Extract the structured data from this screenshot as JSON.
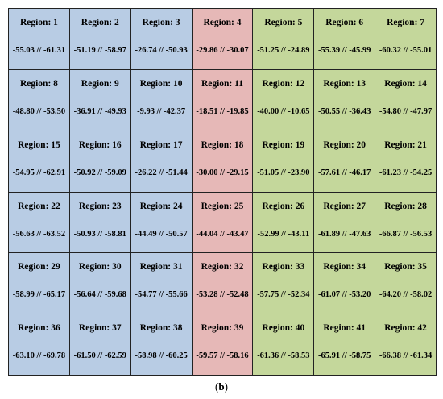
{
  "colors": {
    "blue": "#b8cce4",
    "red": "#e6b8b7",
    "green": "#c4d79b"
  },
  "regions": [
    {
      "label": "Region: 1",
      "values": "-55.03 // -61.31",
      "color": "blue"
    },
    {
      "label": "Region: 2",
      "values": "-51.19 // -58.97",
      "color": "blue"
    },
    {
      "label": "Region: 3",
      "values": "-26.74 // -50.93",
      "color": "blue"
    },
    {
      "label": "Region: 4",
      "values": "-29.86 // -30.07",
      "color": "red"
    },
    {
      "label": "Region: 5",
      "values": "-51.25 // -24.89",
      "color": "green"
    },
    {
      "label": "Region: 6",
      "values": "-55.39 // -45.99",
      "color": "green"
    },
    {
      "label": "Region: 7",
      "values": "-60.32 // -55.01",
      "color": "green"
    },
    {
      "label": "Region: 8",
      "values": "-48.80 // -53.50",
      "color": "blue"
    },
    {
      "label": "Region: 9",
      "values": "-36.91 // -49.93",
      "color": "blue"
    },
    {
      "label": "Region: 10",
      "values": "-9.93 // -42.37",
      "color": "blue"
    },
    {
      "label": "Region: 11",
      "values": "-18.51 // -19.85",
      "color": "red"
    },
    {
      "label": "Region: 12",
      "values": "-40.00 // -10.65",
      "color": "green"
    },
    {
      "label": "Region: 13",
      "values": "-50.55 // -36.43",
      "color": "green"
    },
    {
      "label": "Region: 14",
      "values": "-54.80 // -47.97",
      "color": "green"
    },
    {
      "label": "Region: 15",
      "values": "-54.95 // -62.91",
      "color": "blue"
    },
    {
      "label": "Region: 16",
      "values": "-50.92 // -59.09",
      "color": "blue"
    },
    {
      "label": "Region: 17",
      "values": "-26.22 // -51.44",
      "color": "blue"
    },
    {
      "label": "Region: 18",
      "values": "-30.00 // -29.15",
      "color": "red"
    },
    {
      "label": "Region: 19",
      "values": "-51.05 // -23.90",
      "color": "green"
    },
    {
      "label": "Region: 20",
      "values": "-57.61 // -46.17",
      "color": "green"
    },
    {
      "label": "Region: 21",
      "values": "-61.23 // -54.25",
      "color": "green"
    },
    {
      "label": "Region: 22",
      "values": "-56.63 // -63.52",
      "color": "blue"
    },
    {
      "label": "Region: 23",
      "values": "-50.93 // -58.81",
      "color": "blue"
    },
    {
      "label": "Region: 24",
      "values": "-44.49 // -50.57",
      "color": "blue"
    },
    {
      "label": "Region: 25",
      "values": "-44.04 // -43.47",
      "color": "red"
    },
    {
      "label": "Region: 26",
      "values": "-52.99 // -43.11",
      "color": "green"
    },
    {
      "label": "Region: 27",
      "values": "-61.89 // -47.63",
      "color": "green"
    },
    {
      "label": "Region: 28",
      "values": "-66.87 // -56.53",
      "color": "green"
    },
    {
      "label": "Region: 29",
      "values": "-58.99 // -65.17",
      "color": "blue"
    },
    {
      "label": "Region: 30",
      "values": "-56.64 // -59.68",
      "color": "blue"
    },
    {
      "label": "Region: 31",
      "values": "-54.77 // -55.66",
      "color": "blue"
    },
    {
      "label": "Region: 32",
      "values": "-53.28 // -52.48",
      "color": "red"
    },
    {
      "label": "Region: 33",
      "values": "-57.75 // -52.34",
      "color": "green"
    },
    {
      "label": "Region: 34",
      "values": "-61.07 // -53.20",
      "color": "green"
    },
    {
      "label": "Region: 35",
      "values": "-64.20 // -58.02",
      "color": "green"
    },
    {
      "label": "Region: 36",
      "values": "-63.10 // -69.78",
      "color": "blue"
    },
    {
      "label": "Region: 37",
      "values": "-61.50 // -62.59",
      "color": "blue"
    },
    {
      "label": "Region: 38",
      "values": "-58.98 // -60.25",
      "color": "blue"
    },
    {
      "label": "Region: 39",
      "values": "-59.57 // -58.16",
      "color": "red"
    },
    {
      "label": "Region: 40",
      "values": "-61.36 // -58.53",
      "color": "green"
    },
    {
      "label": "Region: 41",
      "values": "-65.91 // -58.75",
      "color": "green"
    },
    {
      "label": "Region: 42",
      "values": "-66.38 // -61.34",
      "color": "green"
    }
  ],
  "caption": {
    "open": "(",
    "letter": "b",
    "close": ")"
  }
}
